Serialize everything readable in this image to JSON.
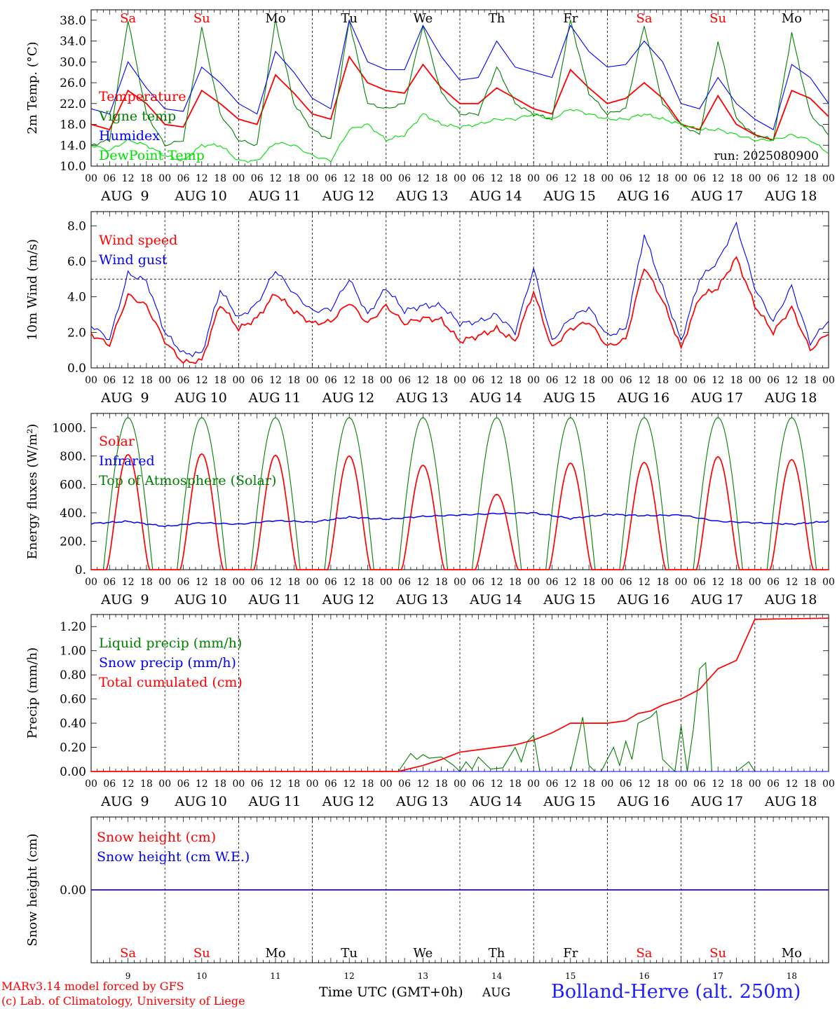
{
  "meta": {
    "run_label": "run: 2025080900",
    "credit_line1": "MARv3.14 model forced by GFS",
    "credit_line2": "(c) Lab. of Climatology, University of Liege",
    "time_axis_label": "Time UTC (GMT+0h)",
    "month": "AUG",
    "location": "Bolland-Herve (alt. 250m)"
  },
  "days": [
    {
      "num": "9",
      "wd": "Sa",
      "weekend": true
    },
    {
      "num": "10",
      "wd": "Su",
      "weekend": true
    },
    {
      "num": "11",
      "wd": "Mo",
      "weekend": false
    },
    {
      "num": "12",
      "wd": "Tu",
      "weekend": false
    },
    {
      "num": "13",
      "wd": "We",
      "weekend": false
    },
    {
      "num": "14",
      "wd": "Th",
      "weekend": false
    },
    {
      "num": "15",
      "wd": "Fr",
      "weekend": false
    },
    {
      "num": "16",
      "wd": "Sa",
      "weekend": true
    },
    {
      "num": "17",
      "wd": "Su",
      "weekend": true
    },
    {
      "num": "18",
      "wd": "Mo",
      "weekend": false
    }
  ],
  "hour_ticks": [
    "00",
    "06",
    "12",
    "18"
  ],
  "colors": {
    "red": "#ff0000",
    "blue": "#0000ff",
    "green": "#008000",
    "light_green": "#00dd00",
    "grey_blue": "#4040ff",
    "weekend": "#ff0000",
    "weekday": "#000000"
  },
  "chart_data": [
    {
      "id": "temperature",
      "type": "line",
      "ylabel": "2m Temp. (°C)",
      "ylim": [
        10,
        40
      ],
      "yticks": [
        10,
        14,
        18,
        22,
        26,
        30,
        34,
        38
      ],
      "ytick_labels": [
        "10.0",
        "14.0",
        "18.0",
        "22.0",
        "26.0",
        "30.0",
        "34.0",
        "38.0"
      ],
      "legend": [
        "Temperature",
        "Vigne temp",
        "Humidex",
        "DewPoint Temp"
      ],
      "x_hours": [
        0,
        6,
        12,
        18,
        24,
        30,
        36,
        42,
        48,
        54,
        60,
        66,
        72,
        78,
        84,
        90,
        96,
        102,
        108,
        114,
        120,
        126,
        132,
        138,
        144,
        150,
        156,
        162,
        168,
        174,
        180,
        186,
        192,
        198,
        204,
        210,
        216,
        222,
        228,
        234,
        240
      ],
      "series": [
        {
          "name": "Temperature",
          "color": "red",
          "values": [
            18,
            17,
            24.5,
            22,
            18,
            17.5,
            24.5,
            22,
            19,
            18,
            27.5,
            24,
            20,
            19,
            31,
            26,
            24.5,
            24,
            29.5,
            25,
            22,
            22,
            25,
            23,
            21,
            20,
            28.5,
            25,
            22,
            23,
            26,
            23,
            18,
            17,
            23.5,
            18,
            16,
            15,
            24.5,
            23,
            19.5
          ]
        },
        {
          "name": "Vigne temp",
          "color": "green",
          "values": [
            14,
            15,
            38,
            20,
            14,
            15,
            36.5,
            20,
            15,
            14,
            38,
            22,
            17,
            15,
            38,
            22,
            21,
            22,
            37,
            24,
            20,
            20,
            29,
            22,
            20,
            19,
            38,
            24,
            20,
            21,
            37,
            22,
            18,
            16,
            34,
            19,
            16,
            15,
            35.5,
            20,
            16
          ]
        },
        {
          "name": "Humidex",
          "color": "blue",
          "values": [
            21,
            20,
            30,
            25,
            21,
            20.5,
            29,
            26,
            22,
            20,
            32,
            28,
            23,
            21,
            38,
            30,
            28.5,
            28.5,
            37,
            31,
            26.5,
            27,
            34,
            29,
            28,
            27,
            37,
            32,
            29,
            29.5,
            34,
            30,
            22,
            21,
            27,
            22,
            19,
            17,
            29.5,
            27,
            22
          ]
        },
        {
          "name": "DewPoint Temp",
          "color": "light_green",
          "values": [
            14,
            13,
            15,
            14,
            12,
            11,
            14,
            14,
            11,
            11,
            14.5,
            14,
            12,
            11,
            17,
            18,
            15,
            16,
            20,
            18,
            17.5,
            18,
            19,
            19,
            20,
            19,
            21,
            20,
            19,
            19,
            20,
            19,
            18,
            17,
            17,
            16,
            15,
            15,
            16,
            15,
            12.5
          ]
        }
      ]
    },
    {
      "id": "wind",
      "type": "line",
      "ylabel": "10m Wind (m/s)",
      "ylim": [
        0,
        8.8
      ],
      "yticks": [
        0,
        2,
        4,
        6,
        8
      ],
      "ytick_labels": [
        "0.0",
        "2.0",
        "4.0",
        "6.0",
        "8.0"
      ],
      "ref_line": 5,
      "legend": [
        "Wind speed",
        "Wind gust"
      ],
      "x_hours": [
        0,
        6,
        12,
        18,
        24,
        30,
        36,
        42,
        48,
        54,
        60,
        66,
        72,
        78,
        84,
        90,
        96,
        102,
        108,
        114,
        120,
        126,
        132,
        138,
        144,
        150,
        156,
        162,
        168,
        174,
        180,
        186,
        192,
        198,
        204,
        210,
        216,
        222,
        228,
        234,
        240
      ],
      "series": [
        {
          "name": "Wind speed",
          "color": "red",
          "values": [
            1.9,
            1.3,
            4.1,
            3.5,
            1.5,
            0.3,
            0.4,
            3.6,
            2.2,
            2.8,
            4.2,
            3.2,
            2.5,
            2.6,
            3.7,
            2.5,
            3.5,
            2.5,
            2.8,
            2.7,
            1.5,
            1.8,
            2.2,
            1.5,
            4.3,
            1.1,
            2.2,
            2.6,
            1.2,
            1.6,
            5.7,
            3.8,
            1.1,
            4,
            4.5,
            6.2,
            3.5,
            2.0,
            3.4,
            1.0,
            2.0
          ]
        },
        {
          "name": "Wind gust",
          "color": "blue",
          "values": [
            2.4,
            1.6,
            5.3,
            4.9,
            2.0,
            0.8,
            0.8,
            4.4,
            2.8,
            3.6,
            5.5,
            4.2,
            3.2,
            3.3,
            5.0,
            3.0,
            4.5,
            3.2,
            3.5,
            3.5,
            2.5,
            2.6,
            3.0,
            2.0,
            5.6,
            1.5,
            2.8,
            3.4,
            1.8,
            2.2,
            7.5,
            4.5,
            1.5,
            5,
            6.0,
            8.1,
            4.5,
            2.6,
            4.6,
            1.4,
            2.7
          ]
        }
      ]
    },
    {
      "id": "energy",
      "type": "line",
      "ylabel": "Energy fluxes (W/m²)",
      "ylim": [
        0,
        1100
      ],
      "yticks": [
        0,
        200,
        400,
        600,
        800,
        1000
      ],
      "ytick_labels": [
        "0.",
        "200.",
        "400.",
        "600.",
        "800.",
        "1000."
      ],
      "legend": [
        "Solar",
        "Infrared",
        "Top of Atmosphere (Solar)"
      ],
      "toa_peak": 1070,
      "daylight_hours": [
        4,
        20
      ],
      "solar_peaks": [
        810,
        815,
        805,
        800,
        735,
        530,
        750,
        755,
        795,
        775
      ],
      "infrared": {
        "x_hours": [
          0,
          12,
          24,
          36,
          48,
          60,
          72,
          84,
          96,
          108,
          120,
          132,
          144,
          156,
          168,
          180,
          192,
          204,
          216,
          228,
          240
        ],
        "values": [
          325,
          340,
          305,
          330,
          320,
          345,
          335,
          370,
          355,
          375,
          385,
          395,
          400,
          360,
          390,
          380,
          385,
          340,
          330,
          320,
          340
        ]
      }
    },
    {
      "id": "precip",
      "type": "line",
      "ylabel": "Precip (mm/h)",
      "ylim": [
        0,
        1.3
      ],
      "yticks": [
        0,
        0.2,
        0.4,
        0.6,
        0.8,
        1.0,
        1.2
      ],
      "ytick_labels": [
        "0.00",
        "0.20",
        "0.40",
        "0.60",
        "0.80",
        "1.00",
        "1.20"
      ],
      "legend": [
        "Liquid precip (mm/h)",
        "Snow precip (mm/h)",
        "Total cumulated (cm)"
      ],
      "series": [
        {
          "name": "Liquid precip (mm/h)",
          "color": "green",
          "x_hours": [
            0,
            100,
            104,
            106,
            108,
            110,
            114,
            118,
            120,
            122,
            124,
            126,
            130,
            134,
            138,
            140,
            142,
            144,
            146,
            150,
            152,
            156,
            160,
            162,
            164,
            166,
            168,
            170,
            172,
            174,
            176,
            178,
            182,
            184,
            186,
            188,
            190,
            192,
            194,
            196,
            198,
            200,
            202,
            210,
            214,
            216,
            220,
            240
          ],
          "values": [
            0,
            0,
            0.15,
            0.1,
            0.14,
            0.11,
            0.12,
            0.05,
            0.0,
            0.08,
            0.02,
            0.12,
            0.02,
            0.03,
            0.2,
            0.08,
            0.25,
            0.3,
            0.0,
            0.0,
            0.0,
            0.0,
            0.45,
            0.05,
            0.0,
            0.0,
            0.1,
            0.2,
            0.05,
            0.25,
            0.1,
            0.4,
            0.45,
            0.5,
            0.1,
            0.05,
            0.0,
            0.38,
            0.0,
            0.35,
            0.85,
            0.9,
            0.0,
            0.0,
            0.08,
            0.0,
            0.0,
            0
          ]
        },
        {
          "name": "Snow precip (mm/h)",
          "color": "blue",
          "x_hours": [
            0,
            240
          ],
          "values": [
            0,
            0
          ]
        },
        {
          "name": "Total cumulated (cm)",
          "color": "red",
          "x_hours": [
            0,
            100,
            108,
            114,
            120,
            126,
            132,
            138,
            144,
            150,
            156,
            162,
            168,
            174,
            178,
            182,
            186,
            192,
            198,
            204,
            210,
            216,
            240
          ],
          "values": [
            0,
            0,
            0.05,
            0.1,
            0.16,
            0.18,
            0.2,
            0.22,
            0.26,
            0.32,
            0.4,
            0.4,
            0.4,
            0.42,
            0.48,
            0.5,
            0.55,
            0.6,
            0.68,
            0.85,
            0.92,
            1.26,
            1.27
          ]
        }
      ]
    },
    {
      "id": "snow",
      "type": "line",
      "ylabel": "Snow height (cm)",
      "ylim": [
        -1,
        1
      ],
      "yticks": [
        0
      ],
      "ytick_labels": [
        "0.00"
      ],
      "legend": [
        "Snow height (cm)",
        "Snow height (cm W.E.)"
      ],
      "series": [
        {
          "name": "Snow height (cm)",
          "color": "red",
          "x_hours": [
            0,
            240
          ],
          "values": [
            0,
            0
          ]
        },
        {
          "name": "Snow height (cm W.E.)",
          "color": "blue",
          "x_hours": [
            0,
            240
          ],
          "values": [
            0,
            0
          ]
        }
      ]
    }
  ]
}
